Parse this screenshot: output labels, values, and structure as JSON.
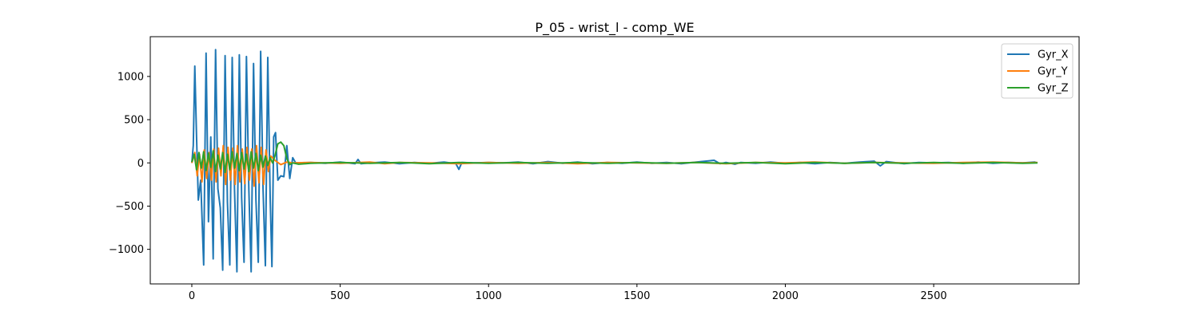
{
  "chart_data": {
    "type": "line",
    "title": "P_05 - wrist_l - comp_WE",
    "xlabel": "",
    "ylabel": "",
    "xlim": [
      -140,
      2990
    ],
    "ylim": [
      -1400,
      1460
    ],
    "xticks": [
      0,
      500,
      1000,
      1500,
      2000,
      2500
    ],
    "yticks": [
      -1000,
      -500,
      0,
      500,
      1000
    ],
    "ytick_labels": [
      "−1000",
      "−500",
      "0",
      "500",
      "1000"
    ],
    "grid": false,
    "legend": {
      "placement": "top-right",
      "entries": [
        "Gyr_X",
        "Gyr_Y",
        "Gyr_Z"
      ]
    },
    "series": [
      {
        "name": "Gyr_X",
        "color": "#1f77b4",
        "points": [
          [
            0,
            0
          ],
          [
            5,
            200
          ],
          [
            10,
            1120
          ],
          [
            16,
            300
          ],
          [
            22,
            -430
          ],
          [
            30,
            -200
          ],
          [
            40,
            -1180
          ],
          [
            48,
            1270
          ],
          [
            56,
            -680
          ],
          [
            64,
            300
          ],
          [
            72,
            -1110
          ],
          [
            80,
            1310
          ],
          [
            88,
            -300
          ],
          [
            96,
            -520
          ],
          [
            104,
            -1240
          ],
          [
            112,
            1240
          ],
          [
            120,
            -450
          ],
          [
            128,
            -1180
          ],
          [
            136,
            1220
          ],
          [
            144,
            -310
          ],
          [
            152,
            -1260
          ],
          [
            160,
            1250
          ],
          [
            168,
            -400
          ],
          [
            176,
            -1150
          ],
          [
            184,
            1230
          ],
          [
            192,
            -300
          ],
          [
            200,
            -1260
          ],
          [
            208,
            1150
          ],
          [
            216,
            -430
          ],
          [
            224,
            -1150
          ],
          [
            232,
            1290
          ],
          [
            240,
            -300
          ],
          [
            248,
            -1190
          ],
          [
            256,
            1220
          ],
          [
            264,
            -400
          ],
          [
            270,
            -1200
          ],
          [
            276,
            300
          ],
          [
            282,
            350
          ],
          [
            290,
            -200
          ],
          [
            300,
            -150
          ],
          [
            310,
            -160
          ],
          [
            320,
            200
          ],
          [
            330,
            -180
          ],
          [
            340,
            60
          ],
          [
            350,
            0
          ],
          [
            400,
            5
          ],
          [
            450,
            -5
          ],
          [
            500,
            10
          ],
          [
            550,
            -10
          ],
          [
            560,
            40
          ],
          [
            570,
            -10
          ],
          [
            600,
            0
          ],
          [
            650,
            10
          ],
          [
            700,
            -10
          ],
          [
            750,
            5
          ],
          [
            800,
            -5
          ],
          [
            850,
            10
          ],
          [
            890,
            -10
          ],
          [
            900,
            -75
          ],
          [
            910,
            5
          ],
          [
            950,
            0
          ],
          [
            1000,
            5
          ],
          [
            1050,
            0
          ],
          [
            1100,
            10
          ],
          [
            1150,
            -10
          ],
          [
            1200,
            15
          ],
          [
            1250,
            -5
          ],
          [
            1300,
            10
          ],
          [
            1350,
            -10
          ],
          [
            1400,
            5
          ],
          [
            1450,
            -5
          ],
          [
            1500,
            10
          ],
          [
            1550,
            -5
          ],
          [
            1600,
            5
          ],
          [
            1650,
            -10
          ],
          [
            1700,
            10
          ],
          [
            1760,
            30
          ],
          [
            1780,
            -10
          ],
          [
            1800,
            5
          ],
          [
            1830,
            -15
          ],
          [
            1850,
            5
          ],
          [
            1900,
            -5
          ],
          [
            1950,
            10
          ],
          [
            2000,
            -5
          ],
          [
            2050,
            5
          ],
          [
            2100,
            -10
          ],
          [
            2150,
            5
          ],
          [
            2200,
            -5
          ],
          [
            2250,
            10
          ],
          [
            2300,
            20
          ],
          [
            2320,
            -35
          ],
          [
            2340,
            15
          ],
          [
            2400,
            -10
          ],
          [
            2450,
            5
          ],
          [
            2500,
            0
          ],
          [
            2550,
            5
          ],
          [
            2600,
            -5
          ],
          [
            2650,
            10
          ],
          [
            2700,
            -5
          ],
          [
            2750,
            5
          ],
          [
            2800,
            0
          ],
          [
            2840,
            10
          ],
          [
            2850,
            0
          ]
        ]
      },
      {
        "name": "Gyr_Y",
        "color": "#ff7f0e",
        "points": [
          [
            0,
            0
          ],
          [
            10,
            120
          ],
          [
            18,
            -150
          ],
          [
            26,
            100
          ],
          [
            34,
            -220
          ],
          [
            42,
            150
          ],
          [
            50,
            -180
          ],
          [
            58,
            120
          ],
          [
            66,
            -200
          ],
          [
            74,
            160
          ],
          [
            82,
            -220
          ],
          [
            90,
            170
          ],
          [
            98,
            -150
          ],
          [
            106,
            200
          ],
          [
            114,
            -250
          ],
          [
            122,
            180
          ],
          [
            130,
            -200
          ],
          [
            138,
            170
          ],
          [
            146,
            -250
          ],
          [
            154,
            200
          ],
          [
            162,
            -220
          ],
          [
            170,
            160
          ],
          [
            178,
            -240
          ],
          [
            186,
            180
          ],
          [
            194,
            -200
          ],
          [
            202,
            160
          ],
          [
            210,
            -270
          ],
          [
            218,
            200
          ],
          [
            226,
            -230
          ],
          [
            234,
            180
          ],
          [
            242,
            -250
          ],
          [
            250,
            150
          ],
          [
            258,
            -100
          ],
          [
            266,
            80
          ],
          [
            280,
            30
          ],
          [
            300,
            -20
          ],
          [
            320,
            10
          ],
          [
            340,
            0
          ],
          [
            400,
            5
          ],
          [
            500,
            -5
          ],
          [
            600,
            10
          ],
          [
            650,
            -10
          ],
          [
            700,
            5
          ],
          [
            800,
            0
          ],
          [
            900,
            -10
          ],
          [
            1000,
            5
          ],
          [
            1100,
            -5
          ],
          [
            1200,
            5
          ],
          [
            1300,
            -10
          ],
          [
            1400,
            5
          ],
          [
            1500,
            0
          ],
          [
            1600,
            -5
          ],
          [
            1700,
            5
          ],
          [
            1800,
            -10
          ],
          [
            1900,
            5
          ],
          [
            2000,
            0
          ],
          [
            2100,
            10
          ],
          [
            2200,
            -5
          ],
          [
            2300,
            5
          ],
          [
            2400,
            0
          ],
          [
            2500,
            -5
          ],
          [
            2600,
            5
          ],
          [
            2700,
            10
          ],
          [
            2800,
            0
          ],
          [
            2850,
            5
          ]
        ]
      },
      {
        "name": "Gyr_Z",
        "color": "#2ca02c",
        "points": [
          [
            0,
            10
          ],
          [
            8,
            100
          ],
          [
            16,
            -80
          ],
          [
            24,
            120
          ],
          [
            32,
            -60
          ],
          [
            40,
            130
          ],
          [
            48,
            -90
          ],
          [
            56,
            110
          ],
          [
            64,
            -50
          ],
          [
            72,
            140
          ],
          [
            80,
            -100
          ],
          [
            88,
            90
          ],
          [
            96,
            -70
          ],
          [
            104,
            120
          ],
          [
            112,
            -110
          ],
          [
            120,
            100
          ],
          [
            128,
            -80
          ],
          [
            136,
            130
          ],
          [
            144,
            -60
          ],
          [
            152,
            110
          ],
          [
            160,
            -90
          ],
          [
            168,
            120
          ],
          [
            176,
            -70
          ],
          [
            184,
            100
          ],
          [
            192,
            -100
          ],
          [
            200,
            130
          ],
          [
            208,
            -60
          ],
          [
            216,
            110
          ],
          [
            224,
            -90
          ],
          [
            232,
            90
          ],
          [
            240,
            -50
          ],
          [
            248,
            80
          ],
          [
            256,
            -30
          ],
          [
            264,
            60
          ],
          [
            272,
            0
          ],
          [
            280,
            80
          ],
          [
            290,
            220
          ],
          [
            300,
            240
          ],
          [
            310,
            200
          ],
          [
            320,
            50
          ],
          [
            330,
            -20
          ],
          [
            340,
            0
          ],
          [
            360,
            -15
          ],
          [
            400,
            -5
          ],
          [
            500,
            5
          ],
          [
            600,
            -5
          ],
          [
            700,
            5
          ],
          [
            800,
            -10
          ],
          [
            900,
            5
          ],
          [
            1000,
            -5
          ],
          [
            1100,
            5
          ],
          [
            1200,
            -5
          ],
          [
            1300,
            5
          ],
          [
            1400,
            -5
          ],
          [
            1500,
            5
          ],
          [
            1600,
            -5
          ],
          [
            1700,
            5
          ],
          [
            1800,
            -5
          ],
          [
            1900,
            5
          ],
          [
            2000,
            -10
          ],
          [
            2100,
            5
          ],
          [
            2200,
            -5
          ],
          [
            2300,
            5
          ],
          [
            2400,
            -5
          ],
          [
            2500,
            5
          ],
          [
            2600,
            -5
          ],
          [
            2700,
            5
          ],
          [
            2800,
            -5
          ],
          [
            2850,
            0
          ]
        ]
      }
    ]
  }
}
